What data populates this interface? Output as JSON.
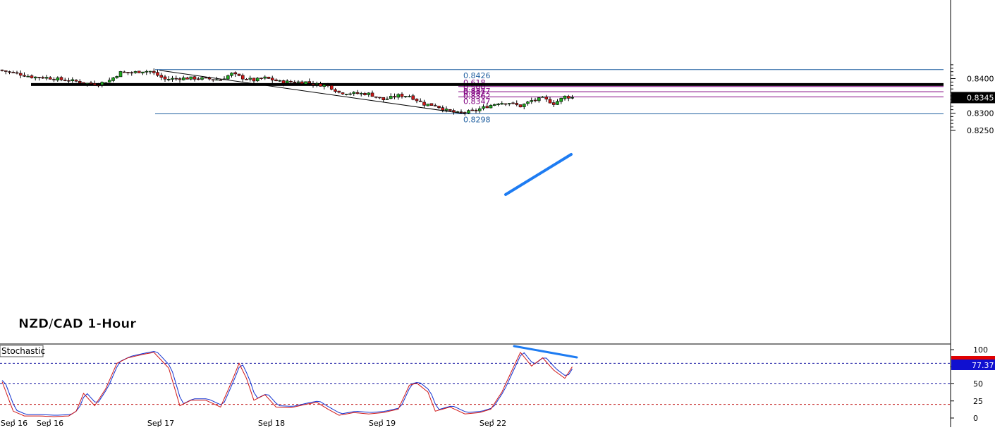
{
  "chart_data": [
    {
      "type": "candlestick",
      "title": "NZD/CAD 1-Hour",
      "y_ticks": [
        "0.8400",
        "0.8350",
        "0.8300",
        "0.8250"
      ],
      "x_ticks": [
        "Sep 16",
        "Sep 16",
        "Sep 17",
        "Sep 18",
        "Sep 19",
        "Sep 22"
      ],
      "current_price": "0.8345",
      "levels": [
        {
          "kind": "swing-high",
          "price": 0.8426,
          "label": "0.8426"
        },
        {
          "kind": "swing-low",
          "price": 0.8298,
          "label": "0.8298"
        },
        {
          "kind": "fibonacci",
          "ratio": "0.618",
          "price": 0.8377,
          "label": "0.8377"
        },
        {
          "kind": "fibonacci",
          "ratio": "0.500",
          "price": 0.8362,
          "label": "0.8362"
        },
        {
          "kind": "fibonacci",
          "ratio": "0.382",
          "price": 0.8347,
          "label": "0.8347"
        },
        {
          "kind": "support-resistance",
          "price": 0.8383
        }
      ],
      "colors": {
        "up": "#1faa1f",
        "down": "#d01818",
        "fib": "#800080",
        "level": "#1f5fa0",
        "trendline": "#1e7cf2",
        "price_badge": "#000000"
      }
    },
    {
      "type": "line",
      "title": "Stochastic",
      "y_ticks": [
        "100",
        "75",
        "50",
        "25",
        "0"
      ],
      "ylim": [
        0,
        100
      ],
      "reference_levels": [
        80,
        50,
        20
      ],
      "current_value": "77.37",
      "series": [
        {
          "color": "#1030d0"
        },
        {
          "color": "#d01818"
        }
      ],
      "colors": {
        "value_badge": "#1010d0",
        "upper_badge": "#e00000",
        "divergence_line": "#1e7cf2"
      }
    }
  ]
}
